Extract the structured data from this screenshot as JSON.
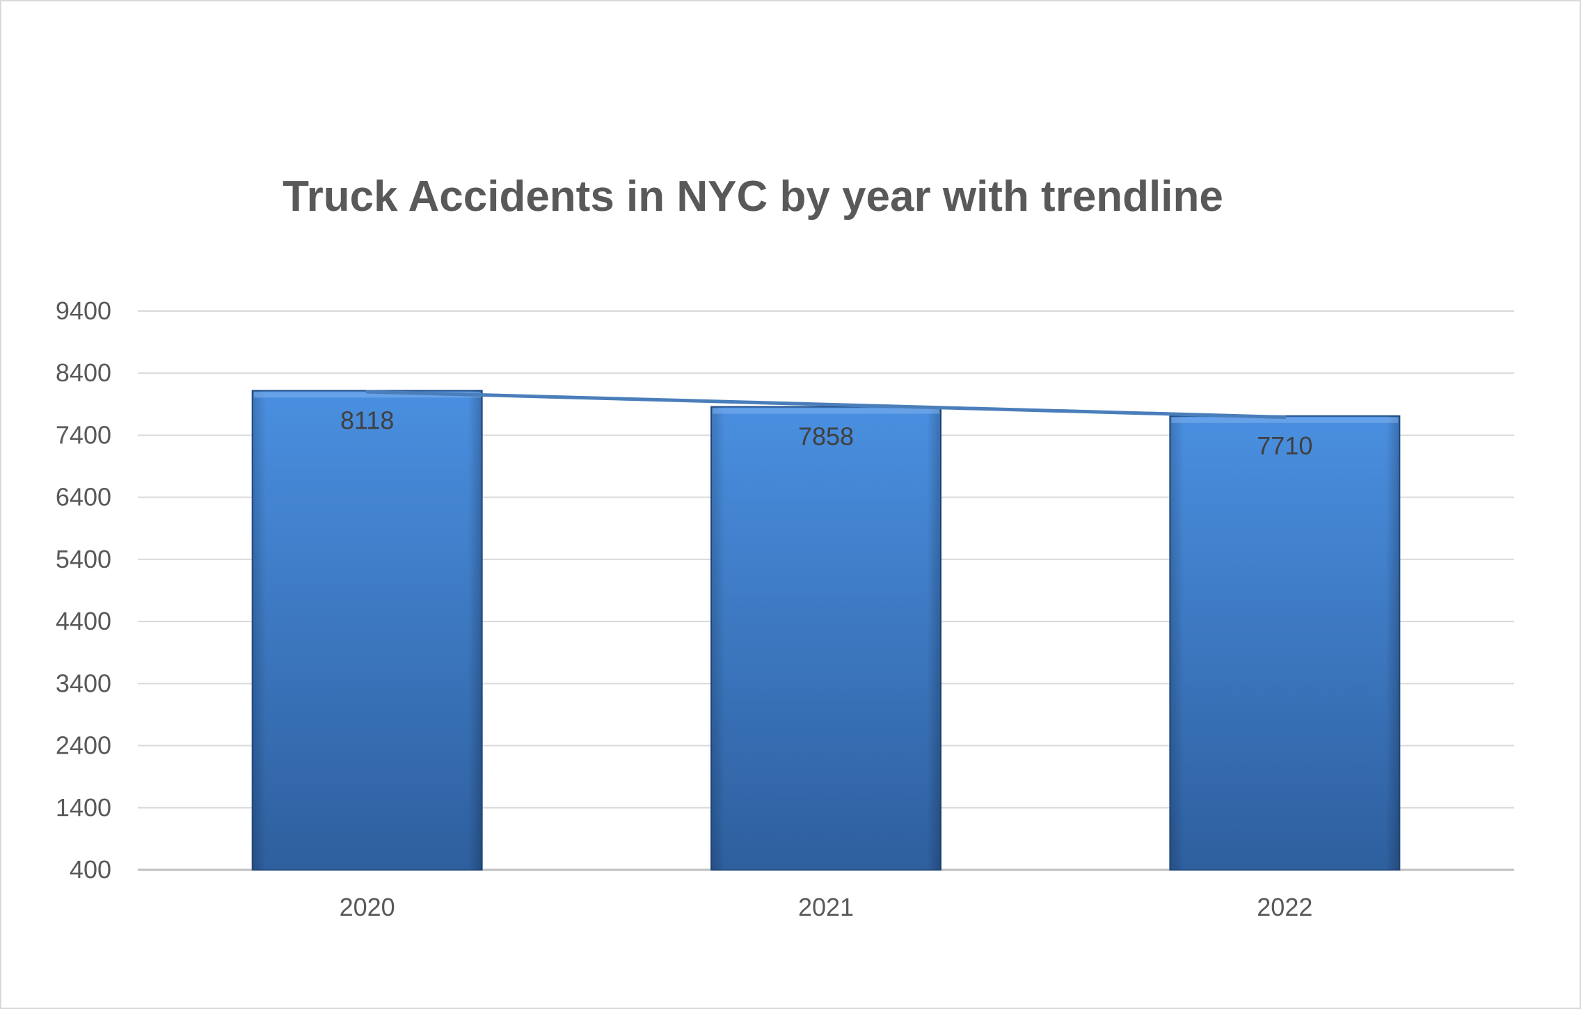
{
  "chart_data": {
    "type": "bar",
    "title": "Truck Accidents in NYC by year with trendline",
    "xlabel": "",
    "ylabel": "",
    "categories": [
      "2020",
      "2021",
      "2022"
    ],
    "values": [
      8118,
      7858,
      7710
    ],
    "data_labels": [
      "8118",
      "7858",
      "7710"
    ],
    "y_ticks": [
      "400",
      "1400",
      "2400",
      "3400",
      "4400",
      "5400",
      "6400",
      "7400",
      "8400",
      "9400"
    ],
    "ylim": [
      400,
      9400
    ],
    "grid": true,
    "legend": "none",
    "trendline": {
      "type": "linear",
      "color": "#4a7ebb"
    },
    "colors": {
      "bar_top": "#4a8fe0",
      "bar_bottom": "#2e5f9e",
      "gridline": "#d9d9d9",
      "text": "#595959"
    }
  }
}
